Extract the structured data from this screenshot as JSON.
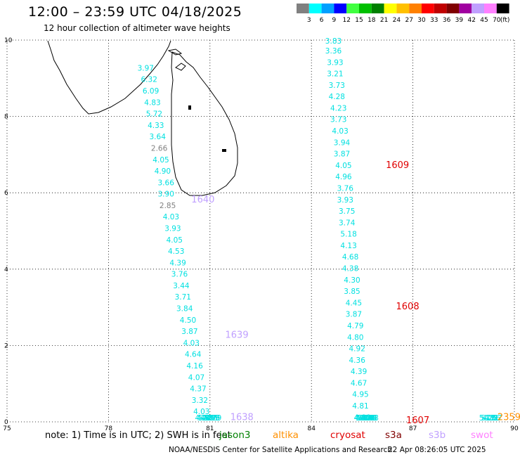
{
  "header": {
    "title": "12:00 – 23:59 UTC 04/18/2025",
    "subtitle": "12 hour collection of altimeter wave heights"
  },
  "legend": {
    "unit": "(ft)",
    "bins": [
      {
        "label": "3",
        "color": "#808080"
      },
      {
        "label": "6",
        "color": "#00ffff"
      },
      {
        "label": "9",
        "color": "#00a0ff"
      },
      {
        "label": "12",
        "color": "#0000ff"
      },
      {
        "label": "15",
        "color": "#40ff40"
      },
      {
        "label": "18",
        "color": "#00c000"
      },
      {
        "label": "21",
        "color": "#008000"
      },
      {
        "label": "24",
        "color": "#ffff00"
      },
      {
        "label": "27",
        "color": "#ffc000"
      },
      {
        "label": "30",
        "color": "#ff8000"
      },
      {
        "label": "33",
        "color": "#ff0000"
      },
      {
        "label": "36",
        "color": "#c00000"
      },
      {
        "label": "39",
        "color": "#800000"
      },
      {
        "label": "42",
        "color": "#a000a0"
      },
      {
        "label": "45",
        "color": "#c0a0ff"
      },
      {
        "label": "70",
        "color": "#ff80ff"
      },
      {
        "label": "",
        "color": "#000000"
      }
    ]
  },
  "axes": {
    "x_ticks": [
      "75",
      "78",
      "81",
      "84",
      "87",
      "90"
    ],
    "y_ticks": [
      "0",
      "2",
      "4",
      "6",
      "8",
      "10"
    ],
    "lon_range": [
      75,
      90
    ],
    "lat_range": [
      0,
      10
    ],
    "grid": true
  },
  "colors": {
    "cyan": "#00e0e0",
    "gray": "#808080",
    "cryosat": "#e00000",
    "swot": "#c0a0ff",
    "altika": "#ff9000",
    "jason": "#008000"
  },
  "passes": [
    {
      "label": "1640",
      "lat": 5.75,
      "lon": 80.45,
      "color": "#c0a0ff"
    },
    {
      "label": "1639",
      "lat": 2.2,
      "lon": 81.45,
      "color": "#c0a0ff"
    },
    {
      "label": "1638",
      "lat": 0.05,
      "lon": 81.6,
      "color": "#c0a0ff"
    },
    {
      "label": "1609",
      "lat": 6.65,
      "lon": 86.2,
      "color": "#e00000"
    },
    {
      "label": "1608",
      "lat": 2.95,
      "lon": 86.5,
      "color": "#e00000"
    },
    {
      "label": "1607",
      "lat": -0.05,
      "lon": 86.8,
      "color": "#e00000"
    },
    {
      "label": "2359",
      "lat": 0.05,
      "lon": 89.5,
      "color": "#ff9000"
    }
  ],
  "tracks": [
    {
      "name": "swot-west",
      "points": [
        {
          "v": "3.97",
          "lat": 9.2,
          "lon": 79.1,
          "c": "#00e0e0"
        },
        {
          "v": "6.32",
          "lat": 8.9,
          "lon": 79.2,
          "c": "#00e0e0"
        },
        {
          "v": "6.09",
          "lat": 8.6,
          "lon": 79.25,
          "c": "#00e0e0"
        },
        {
          "v": "4.83",
          "lat": 8.3,
          "lon": 79.3,
          "c": "#00e0e0"
        },
        {
          "v": "5.72",
          "lat": 8.0,
          "lon": 79.35,
          "c": "#00e0e0"
        },
        {
          "v": "4.33",
          "lat": 7.7,
          "lon": 79.4,
          "c": "#00e0e0"
        },
        {
          "v": "3.64",
          "lat": 7.4,
          "lon": 79.45,
          "c": "#00e0e0"
        },
        {
          "v": "2.66",
          "lat": 7.1,
          "lon": 79.5,
          "c": "#808080"
        },
        {
          "v": "4.05",
          "lat": 6.8,
          "lon": 79.55,
          "c": "#00e0e0"
        },
        {
          "v": "4.90",
          "lat": 6.5,
          "lon": 79.6,
          "c": "#00e0e0"
        },
        {
          "v": "3.66",
          "lat": 6.2,
          "lon": 79.7,
          "c": "#00e0e0"
        },
        {
          "v": "3.90",
          "lat": 5.9,
          "lon": 79.7,
          "c": "#00e0e0"
        },
        {
          "v": "2.85",
          "lat": 5.6,
          "lon": 79.75,
          "c": "#808080"
        },
        {
          "v": "4.03",
          "lat": 5.3,
          "lon": 79.85,
          "c": "#00e0e0"
        },
        {
          "v": "3.93",
          "lat": 5.0,
          "lon": 79.9,
          "c": "#00e0e0"
        },
        {
          "v": "4.05",
          "lat": 4.7,
          "lon": 79.95,
          "c": "#00e0e0"
        },
        {
          "v": "4.53",
          "lat": 4.4,
          "lon": 80.0,
          "c": "#00e0e0"
        },
        {
          "v": "4.39",
          "lat": 4.1,
          "lon": 80.05,
          "c": "#00e0e0"
        },
        {
          "v": "3.76",
          "lat": 3.8,
          "lon": 80.1,
          "c": "#00e0e0"
        },
        {
          "v": "3.44",
          "lat": 3.5,
          "lon": 80.15,
          "c": "#00e0e0"
        },
        {
          "v": "3.71",
          "lat": 3.2,
          "lon": 80.2,
          "c": "#00e0e0"
        },
        {
          "v": "3.84",
          "lat": 2.9,
          "lon": 80.25,
          "c": "#00e0e0"
        },
        {
          "v": "4.50",
          "lat": 2.6,
          "lon": 80.35,
          "c": "#00e0e0"
        },
        {
          "v": "3.87",
          "lat": 2.3,
          "lon": 80.4,
          "c": "#00e0e0"
        },
        {
          "v": "4.03",
          "lat": 2.0,
          "lon": 80.45,
          "c": "#00e0e0"
        },
        {
          "v": "4.64",
          "lat": 1.7,
          "lon": 80.5,
          "c": "#00e0e0"
        },
        {
          "v": "4.16",
          "lat": 1.4,
          "lon": 80.55,
          "c": "#00e0e0"
        },
        {
          "v": "4.07",
          "lat": 1.1,
          "lon": 80.6,
          "c": "#00e0e0"
        },
        {
          "v": "4.37",
          "lat": 0.8,
          "lon": 80.65,
          "c": "#00e0e0"
        },
        {
          "v": "3.32",
          "lat": 0.5,
          "lon": 80.7,
          "c": "#00e0e0"
        },
        {
          "v": "4.03",
          "lat": 0.2,
          "lon": 80.75,
          "c": "#00e0e0"
        },
        {
          "v": "4.27",
          "lat": -0.1,
          "lon": 80.8,
          "c": "#00e0e0"
        },
        {
          "v": "4.51",
          "lat": -0.4,
          "lon": 80.85,
          "c": "#00e0e0"
        },
        {
          "v": "5.38",
          "lat": -0.7,
          "lon": 80.9,
          "c": "#00e0e0"
        },
        {
          "v": "4.07",
          "lat": -1.0,
          "lon": 80.95,
          "c": "#00e0e0"
        },
        {
          "v": "4.85",
          "lat": -1.3,
          "lon": 81.0,
          "c": "#00e0e0"
        },
        {
          "v": "3.55",
          "lat": -1.6,
          "lon": 81.05,
          "c": "#00e0e0"
        },
        {
          "v": "4.40",
          "lat": -1.9,
          "lon": 81.05,
          "c": "#00e0e0"
        },
        {
          "v": "4.79",
          "lat": -2.2,
          "lon": 81.1,
          "c": "#00e0e0"
        }
      ]
    },
    {
      "name": "cryosat-east",
      "points": [
        {
          "v": "3.83",
          "lat": 9.95,
          "lon": 84.65,
          "c": "#00e0e0"
        },
        {
          "v": "3.36",
          "lat": 9.65,
          "lon": 84.65,
          "c": "#00e0e0"
        },
        {
          "v": "3.93",
          "lat": 9.35,
          "lon": 84.7,
          "c": "#00e0e0"
        },
        {
          "v": "3.21",
          "lat": 9.05,
          "lon": 84.7,
          "c": "#00e0e0"
        },
        {
          "v": "3.73",
          "lat": 8.75,
          "lon": 84.75,
          "c": "#00e0e0"
        },
        {
          "v": "4.28",
          "lat": 8.45,
          "lon": 84.75,
          "c": "#00e0e0"
        },
        {
          "v": "4.23",
          "lat": 8.15,
          "lon": 84.8,
          "c": "#00e0e0"
        },
        {
          "v": "3.73",
          "lat": 7.85,
          "lon": 84.8,
          "c": "#00e0e0"
        },
        {
          "v": "4.03",
          "lat": 7.55,
          "lon": 84.85,
          "c": "#00e0e0"
        },
        {
          "v": "3.94",
          "lat": 7.25,
          "lon": 84.9,
          "c": "#00e0e0"
        },
        {
          "v": "3.87",
          "lat": 6.95,
          "lon": 84.9,
          "c": "#00e0e0"
        },
        {
          "v": "4.05",
          "lat": 6.65,
          "lon": 84.95,
          "c": "#00e0e0"
        },
        {
          "v": "4.96",
          "lat": 6.35,
          "lon": 84.95,
          "c": "#00e0e0"
        },
        {
          "v": "3.76",
          "lat": 6.05,
          "lon": 85.0,
          "c": "#00e0e0"
        },
        {
          "v": "3.93",
          "lat": 5.75,
          "lon": 85.0,
          "c": "#00e0e0"
        },
        {
          "v": "3.75",
          "lat": 5.45,
          "lon": 85.05,
          "c": "#00e0e0"
        },
        {
          "v": "3.74",
          "lat": 5.15,
          "lon": 85.05,
          "c": "#00e0e0"
        },
        {
          "v": "5.18",
          "lat": 4.85,
          "lon": 85.1,
          "c": "#00e0e0"
        },
        {
          "v": "4.13",
          "lat": 4.55,
          "lon": 85.1,
          "c": "#00e0e0"
        },
        {
          "v": "4.68",
          "lat": 4.25,
          "lon": 85.15,
          "c": "#00e0e0"
        },
        {
          "v": "4.38",
          "lat": 3.95,
          "lon": 85.15,
          "c": "#00e0e0"
        },
        {
          "v": "4.30",
          "lat": 3.65,
          "lon": 85.2,
          "c": "#00e0e0"
        },
        {
          "v": "3.85",
          "lat": 3.35,
          "lon": 85.2,
          "c": "#00e0e0"
        },
        {
          "v": "4.45",
          "lat": 3.05,
          "lon": 85.25,
          "c": "#00e0e0"
        },
        {
          "v": "3.87",
          "lat": 2.75,
          "lon": 85.25,
          "c": "#00e0e0"
        },
        {
          "v": "4.79",
          "lat": 2.45,
          "lon": 85.3,
          "c": "#00e0e0"
        },
        {
          "v": "4.80",
          "lat": 2.15,
          "lon": 85.3,
          "c": "#00e0e0"
        },
        {
          "v": "4.92",
          "lat": 1.85,
          "lon": 85.35,
          "c": "#00e0e0"
        },
        {
          "v": "4.36",
          "lat": 1.55,
          "lon": 85.35,
          "c": "#00e0e0"
        },
        {
          "v": "4.39",
          "lat": 1.25,
          "lon": 85.4,
          "c": "#00e0e0"
        },
        {
          "v": "4.67",
          "lat": 0.95,
          "lon": 85.4,
          "c": "#00e0e0"
        },
        {
          "v": "4.95",
          "lat": 0.65,
          "lon": 85.45,
          "c": "#00e0e0"
        },
        {
          "v": "4.81",
          "lat": 0.35,
          "lon": 85.45,
          "c": "#00e0e0"
        },
        {
          "v": "4.66",
          "lat": 0.05,
          "lon": 85.5,
          "c": "#00e0e0"
        },
        {
          "v": "4.89",
          "lat": -0.25,
          "lon": 85.5,
          "c": "#00e0e0"
        },
        {
          "v": "4.83",
          "lat": -0.55,
          "lon": 85.55,
          "c": "#00e0e0"
        },
        {
          "v": "5.14",
          "lat": -0.85,
          "lon": 85.55,
          "c": "#00e0e0"
        },
        {
          "v": "5.19",
          "lat": -1.15,
          "lon": 85.6,
          "c": "#00e0e0"
        },
        {
          "v": "5.07",
          "lat": -1.45,
          "lon": 85.6,
          "c": "#00e0e0"
        },
        {
          "v": "4.72",
          "lat": -1.75,
          "lon": 85.65,
          "c": "#00e0e0"
        },
        {
          "v": "5.06",
          "lat": -2.05,
          "lon": 85.65,
          "c": "#00e0e0"
        },
        {
          "v": "4.64",
          "lat": -2.35,
          "lon": 85.7,
          "c": "#00e0e0"
        },
        {
          "v": "4.28",
          "lat": -2.65,
          "lon": 85.7,
          "c": "#00e0e0"
        },
        {
          "v": "4.43",
          "lat": -2.95,
          "lon": 85.75,
          "c": "#00e0e0"
        }
      ]
    },
    {
      "name": "altika-far-east",
      "points": [
        {
          "v": "5.17",
          "lat": -1.3,
          "lon": 89.2,
          "c": "#00e0e0"
        },
        {
          "v": "5.25",
          "lat": -1.6,
          "lon": 89.25,
          "c": "#00e0e0"
        },
        {
          "v": "4.81",
          "lat": -1.9,
          "lon": 89.3,
          "c": "#00e0e0"
        },
        {
          "v": "4.86",
          "lat": -2.2,
          "lon": 89.35,
          "c": "#00e0e0"
        },
        {
          "v": "7.27",
          "lat": -2.5,
          "lon": 89.4,
          "c": "#00e0e0"
        }
      ]
    }
  ],
  "note": "note:  1) Time is in UTC; 2) SWH is in feet",
  "satellites": [
    {
      "label": "jason3",
      "color": "#008000"
    },
    {
      "label": "altika",
      "color": "#ff9000"
    },
    {
      "label": "cryosat",
      "color": "#e00000"
    },
    {
      "label": "s3a",
      "color": "#800000"
    },
    {
      "label": "s3b",
      "color": "#c0a0ff"
    },
    {
      "label": "swot",
      "color": "#ff80ff"
    }
  ],
  "footer": {
    "credit": "NOAA/NESDIS Center for Satellite Applications and Research",
    "issued": "22 Apr 08:26:05 UTC 2025"
  }
}
